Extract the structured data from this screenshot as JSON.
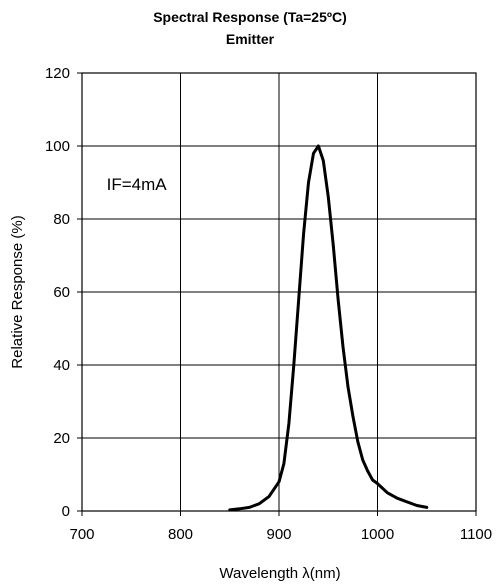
{
  "chart_data": {
    "type": "line",
    "title": "Spectral Response (Ta=25ºC)",
    "subtitle": "Emitter",
    "xlabel": "Wavelength λ(nm)",
    "ylabel": "Relative Response (%)",
    "xlim": [
      700,
      1100
    ],
    "ylim": [
      0,
      120
    ],
    "xticks": [
      700,
      800,
      900,
      1000,
      1100
    ],
    "yticks": [
      0,
      20,
      40,
      60,
      80,
      100,
      120
    ],
    "grid": true,
    "legend": "none",
    "annotations": [
      {
        "text": "IF=4mA",
        "x": 725,
        "y": 88
      }
    ],
    "series": [
      {
        "x": [
          850,
          860,
          870,
          880,
          890,
          900,
          905,
          910,
          915,
          920,
          925,
          930,
          935,
          940,
          945,
          950,
          955,
          960,
          965,
          970,
          975,
          980,
          985,
          990,
          995,
          1000,
          1010,
          1020,
          1030,
          1040,
          1050
        ],
        "values": [
          0.3,
          0.6,
          1,
          2,
          4,
          8,
          13,
          24,
          40,
          58,
          76,
          90,
          98,
          100,
          96,
          86,
          73,
          58,
          45,
          34,
          26,
          19,
          14,
          11,
          8.5,
          7.5,
          5,
          3.5,
          2.5,
          1.5,
          1
        ]
      }
    ]
  }
}
